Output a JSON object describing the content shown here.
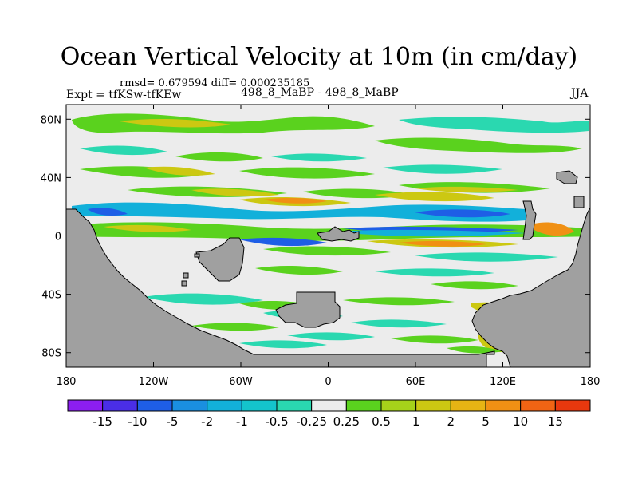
{
  "header": {
    "title": "Ocean Vertical Velocity at 10m (in cm/day)",
    "stats": "rmsd= 0.679594  diff= 0.000235185",
    "experiment": "Expt = tfKSw-tfKEw",
    "case_label": "498_8_MaBP - 498_8_MaBP",
    "season": "JJA"
  },
  "axes": {
    "lat_ticks": [
      "80N",
      "40N",
      "0",
      "40S",
      "80S"
    ],
    "lat_values": [
      80,
      40,
      0,
      -40,
      -80
    ],
    "lon_ticks": [
      "180",
      "120W",
      "60W",
      "0",
      "60E",
      "120E",
      "180"
    ],
    "lon_values": [
      -180,
      -120,
      -60,
      0,
      60,
      120,
      180
    ],
    "lat_range": [
      -90,
      90
    ],
    "lon_range": [
      -180,
      180
    ]
  },
  "colorbar": {
    "labels": [
      "-15",
      "-10",
      "-5",
      "-2",
      "-1",
      "-0.5",
      "-0.25",
      "0.25",
      "0.5",
      "1",
      "2",
      "5",
      "10",
      "15"
    ],
    "colors": [
      "#8c1ef0",
      "#4a2ee6",
      "#1e5ee6",
      "#1a8fe0",
      "#12b0da",
      "#14c4cc",
      "#2ad8b0",
      "#ececec",
      "#5ad21e",
      "#a6d21a",
      "#ccc812",
      "#e6b414",
      "#f09014",
      "#f06414",
      "#e8380e"
    ]
  },
  "map_colors": {
    "land": "#a0a0a0",
    "neutral": "#ececec"
  }
}
